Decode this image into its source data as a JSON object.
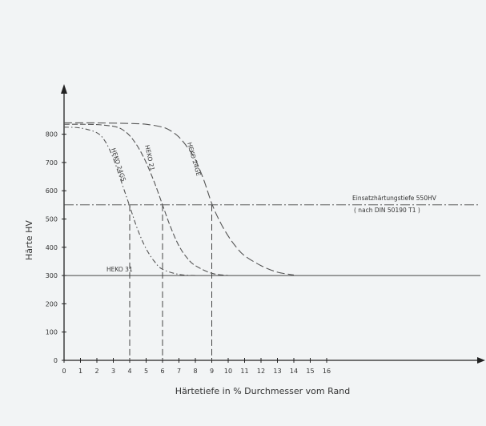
{
  "chart_data": {
    "type": "line",
    "xlabel": "Härtetiefe in % Durchmesser vom Rand",
    "ylabel": "Härte  HV",
    "xlim": [
      0,
      16.5
    ],
    "ylim": [
      0,
      900
    ],
    "x_ticks": [
      0,
      1,
      2,
      3,
      4,
      5,
      6,
      7,
      8,
      9,
      10,
      11,
      12,
      13,
      14,
      15,
      16
    ],
    "y_ticks": [
      0,
      100,
      200,
      300,
      400,
      500,
      600,
      700,
      800
    ],
    "y_tick_labels": [
      "0",
      "100",
      "200",
      "300",
      "400",
      "500",
      "600",
      "700",
      "800"
    ],
    "reference_lines": [
      {
        "label": "Einsatzhärtungstiefe 550HV",
        "sublabel": "( nach DIN 50190 T1 )",
        "y": 550
      },
      {
        "label": "HEKO 31",
        "y": 300
      }
    ],
    "case_depths": [
      4,
      6,
      9
    ],
    "series": [
      {
        "name": "HEKO 24GS",
        "style": "dash-dot",
        "x": [
          0,
          1,
          2,
          2.5,
          3,
          3.5,
          4,
          4.5,
          5,
          5.5,
          6,
          7,
          8
        ],
        "y": [
          825,
          822,
          805,
          775,
          715,
          630,
          545,
          460,
          395,
          350,
          322,
          304,
          300
        ]
      },
      {
        "name": "HEKO 21",
        "style": "dash",
        "x": [
          0,
          1,
          2,
          3,
          3.5,
          4,
          4.5,
          5,
          5.5,
          6,
          6.5,
          7,
          7.5,
          8,
          9,
          10
        ],
        "y": [
          835,
          835,
          834,
          828,
          818,
          795,
          755,
          700,
          630,
          550,
          470,
          405,
          362,
          335,
          308,
          300
        ]
      },
      {
        "name": "HEKO 24GE",
        "style": "dash-long",
        "x": [
          0,
          2,
          4,
          5,
          6,
          6.5,
          7,
          7.5,
          8,
          8.5,
          9,
          9.5,
          10,
          10.5,
          11,
          12,
          13,
          14
        ],
        "y": [
          840,
          840,
          838,
          835,
          825,
          812,
          790,
          755,
          710,
          640,
          555,
          490,
          440,
          400,
          370,
          335,
          312,
          302
        ]
      }
    ]
  },
  "colors": {
    "axis": "#222222",
    "curve": "#555555",
    "ref": "#444444",
    "background": "#f2f4f5"
  }
}
